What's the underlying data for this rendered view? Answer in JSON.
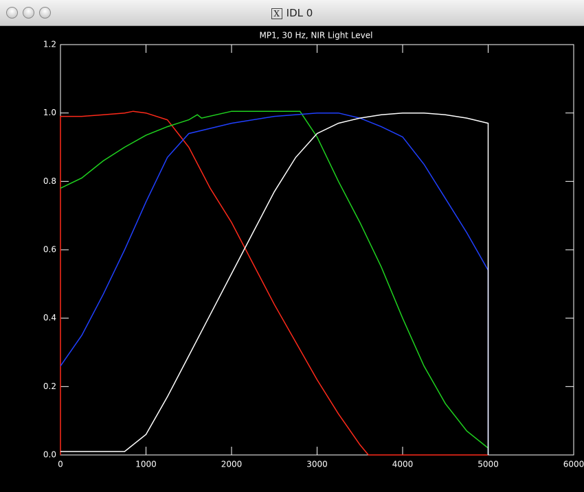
{
  "window": {
    "title": "IDL 0"
  },
  "chart_data": {
    "type": "line",
    "title": "MP1, 30 Hz, NIR Light Level",
    "xlim": [
      0,
      6000
    ],
    "xticks": [
      0,
      1000,
      2000,
      3000,
      4000,
      5000,
      6000
    ],
    "ylim": [
      0,
      1.2
    ],
    "yticks": [
      {
        "value": 0,
        "label": "0.0"
      },
      0.2,
      0.4,
      0.6,
      0.8,
      {
        "value": 1,
        "label": "1.0"
      },
      1.2
    ],
    "series": [
      {
        "color": "#ff2a1a",
        "x": [
          0,
          0,
          250,
          500,
          750,
          850,
          1000,
          1250,
          1500,
          1750,
          2000,
          2250,
          2500,
          2750,
          3000,
          3250,
          3500,
          3600,
          4000,
          4500,
          5000
        ],
        "values": [
          0,
          0.99,
          0.99,
          0.995,
          1.0,
          1.005,
          1.0,
          0.98,
          0.9,
          0.78,
          0.68,
          0.56,
          0.44,
          0.33,
          0.22,
          0.12,
          0.03,
          0,
          0,
          0,
          0
        ]
      },
      {
        "color": "#1fd21f",
        "x": [
          0,
          250,
          500,
          750,
          1000,
          1250,
          1500,
          1600,
          1650,
          2000,
          2500,
          2800,
          3000,
          3250,
          3500,
          3750,
          4000,
          4250,
          4500,
          4750,
          5000,
          5000
        ],
        "values": [
          0.78,
          0.81,
          0.86,
          0.9,
          0.935,
          0.96,
          0.98,
          0.995,
          0.985,
          1.005,
          1.005,
          1.005,
          0.93,
          0.8,
          0.68,
          0.55,
          0.4,
          0.26,
          0.15,
          0.07,
          0.02,
          0
        ]
      },
      {
        "color": "#2040ff",
        "x": [
          0,
          250,
          500,
          750,
          1000,
          1250,
          1500,
          1750,
          2000,
          2500,
          3000,
          3250,
          3500,
          3750,
          4000,
          4250,
          4500,
          4750,
          5000,
          5000
        ],
        "values": [
          0.26,
          0.35,
          0.47,
          0.6,
          0.74,
          0.87,
          0.94,
          0.955,
          0.97,
          0.99,
          1.0,
          1.0,
          0.985,
          0.96,
          0.93,
          0.85,
          0.75,
          0.65,
          0.54,
          0
        ]
      },
      {
        "color": "#ffffff",
        "x": [
          0,
          500,
          750,
          1000,
          1250,
          1500,
          1750,
          2000,
          2250,
          2500,
          2750,
          3000,
          3250,
          3500,
          3750,
          4000,
          4250,
          4500,
          4750,
          5000,
          5000
        ],
        "values": [
          0.01,
          0.01,
          0.01,
          0.06,
          0.17,
          0.29,
          0.41,
          0.53,
          0.65,
          0.77,
          0.87,
          0.94,
          0.97,
          0.985,
          0.995,
          1.0,
          1.0,
          0.995,
          0.985,
          0.97,
          0
        ]
      }
    ]
  }
}
